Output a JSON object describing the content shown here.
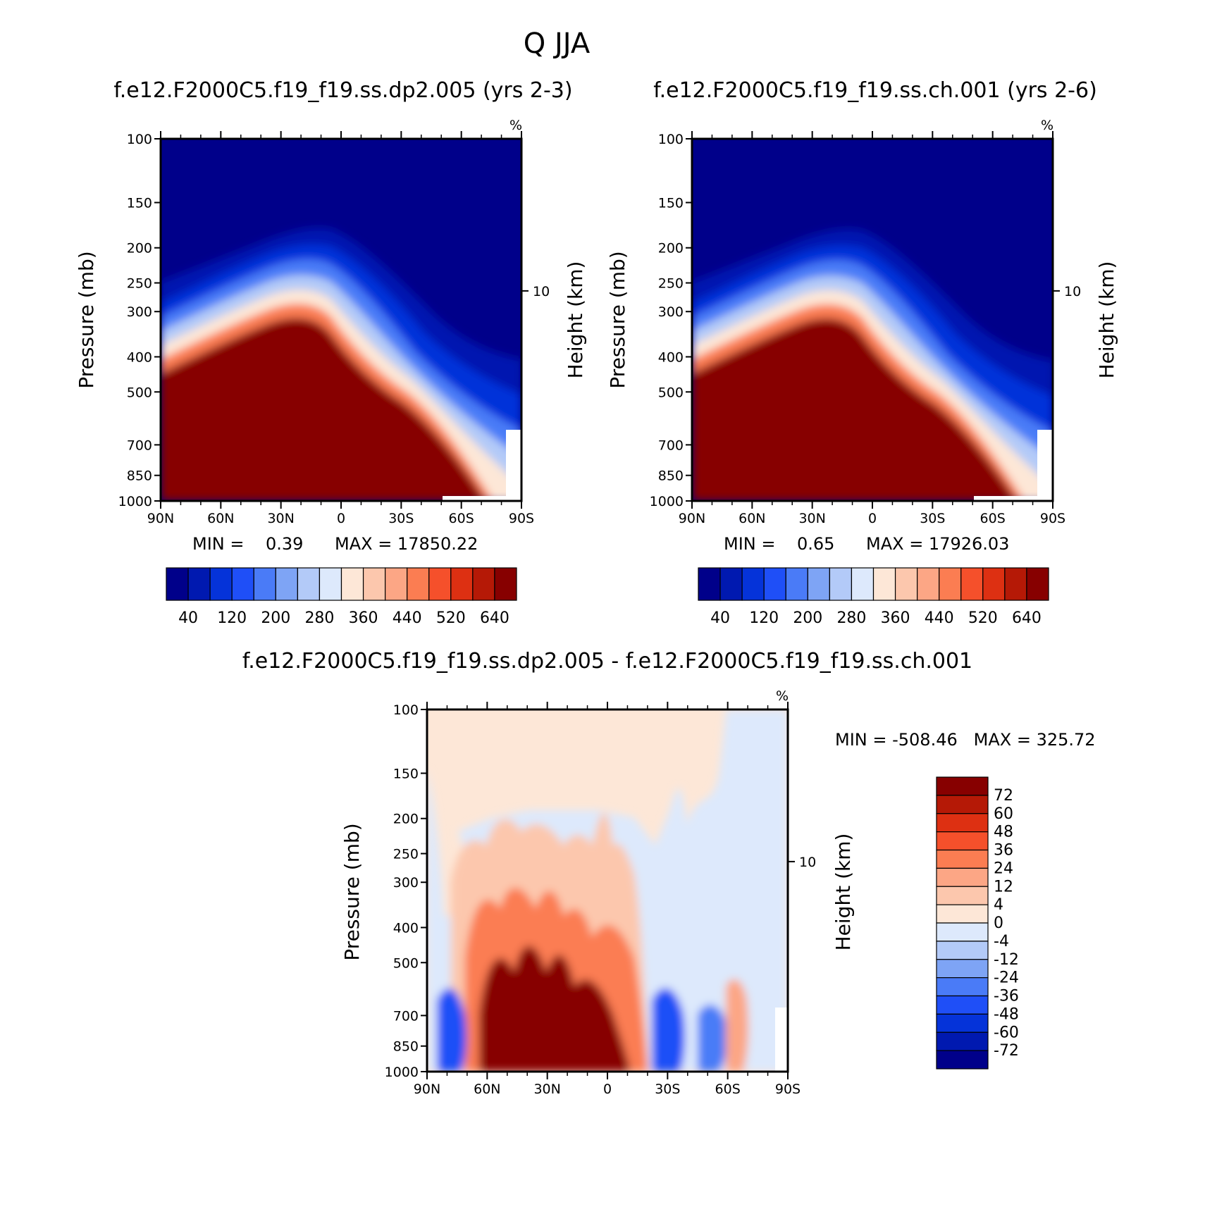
{
  "figure": {
    "title": "Q JJA",
    "panel1_title": "f.e12.F2000C5.f19_f19.ss.dp2.005 (yrs 2-3)",
    "panel2_title": "f.e12.F2000C5.f19_f19.ss.ch.001 (yrs 2-6)",
    "panel3_title": "f.e12.F2000C5.f19_f19.ss.dp2.005 - f.e12.F2000C5.f19_f19.ss.ch.001",
    "units": "%",
    "ylabel": "Pressure (mb)",
    "ylabel_right": "Height (km)",
    "height_tick": "10",
    "panel1_min": "MIN =    0.39",
    "panel1_max": "MAX = 17850.22",
    "panel2_min": "MIN =    0.65",
    "panel2_max": "MAX = 17926.03",
    "panel3_minmax": "MIN = -508.46   MAX = 325.72"
  },
  "chart_data": [
    {
      "type": "heatmap",
      "panel": "left",
      "x_ticks": [
        "90N",
        "60N",
        "30N",
        "0",
        "30S",
        "60S",
        "90S"
      ],
      "y_ticks": [
        "100",
        "150",
        "200",
        "250",
        "300",
        "400",
        "500",
        "700",
        "850",
        "1000"
      ],
      "colorbar_labels": [
        "40",
        "120",
        "200",
        "280",
        "360",
        "440",
        "520",
        "640"
      ],
      "colorbar_colors": [
        "#00008a",
        "#0019b0",
        "#0533d9",
        "#1f4ff7",
        "#4a7bf7",
        "#7ea4f5",
        "#b3caf8",
        "#dde9fc",
        "#fde7d7",
        "#fcc7ad",
        "#fca685",
        "#fb7d52",
        "#f5502b",
        "#dd3012",
        "#b51906",
        "#870000"
      ],
      "description": "Moisture cross section; high values near surface in tropics, decreasing aloft"
    },
    {
      "type": "heatmap",
      "panel": "right",
      "x_ticks": [
        "90N",
        "60N",
        "30N",
        "0",
        "30S",
        "60S",
        "90S"
      ],
      "y_ticks": [
        "100",
        "150",
        "200",
        "250",
        "300",
        "400",
        "500",
        "700",
        "850",
        "1000"
      ],
      "colorbar_labels": [
        "40",
        "120",
        "200",
        "280",
        "360",
        "440",
        "520",
        "640"
      ],
      "colorbar_colors": [
        "#00008a",
        "#0019b0",
        "#0533d9",
        "#1f4ff7",
        "#4a7bf7",
        "#7ea4f5",
        "#b3caf8",
        "#dde9fc",
        "#fde7d7",
        "#fcc7ad",
        "#fca685",
        "#fb7d52",
        "#f5502b",
        "#dd3012",
        "#b51906",
        "#870000"
      ]
    },
    {
      "type": "heatmap",
      "panel": "difference",
      "x_ticks": [
        "90N",
        "60N",
        "30N",
        "0",
        "30S",
        "60S",
        "90S"
      ],
      "y_ticks": [
        "100",
        "150",
        "200",
        "250",
        "300",
        "400",
        "500",
        "700",
        "850",
        "1000"
      ],
      "colorbar_labels": [
        "72",
        "60",
        "48",
        "36",
        "24",
        "12",
        "4",
        "0",
        "-4",
        "-12",
        "-24",
        "-36",
        "-48",
        "-60",
        "-72"
      ],
      "colorbar_colors": [
        "#870000",
        "#b51906",
        "#dd3012",
        "#f5502b",
        "#fb7d52",
        "#fca685",
        "#fcc7ad",
        "#fde7d7",
        "#dde9fc",
        "#b3caf8",
        "#7ea4f5",
        "#4a7bf7",
        "#1f4ff7",
        "#0533d9",
        "#0019b0",
        "#00008a"
      ]
    }
  ]
}
